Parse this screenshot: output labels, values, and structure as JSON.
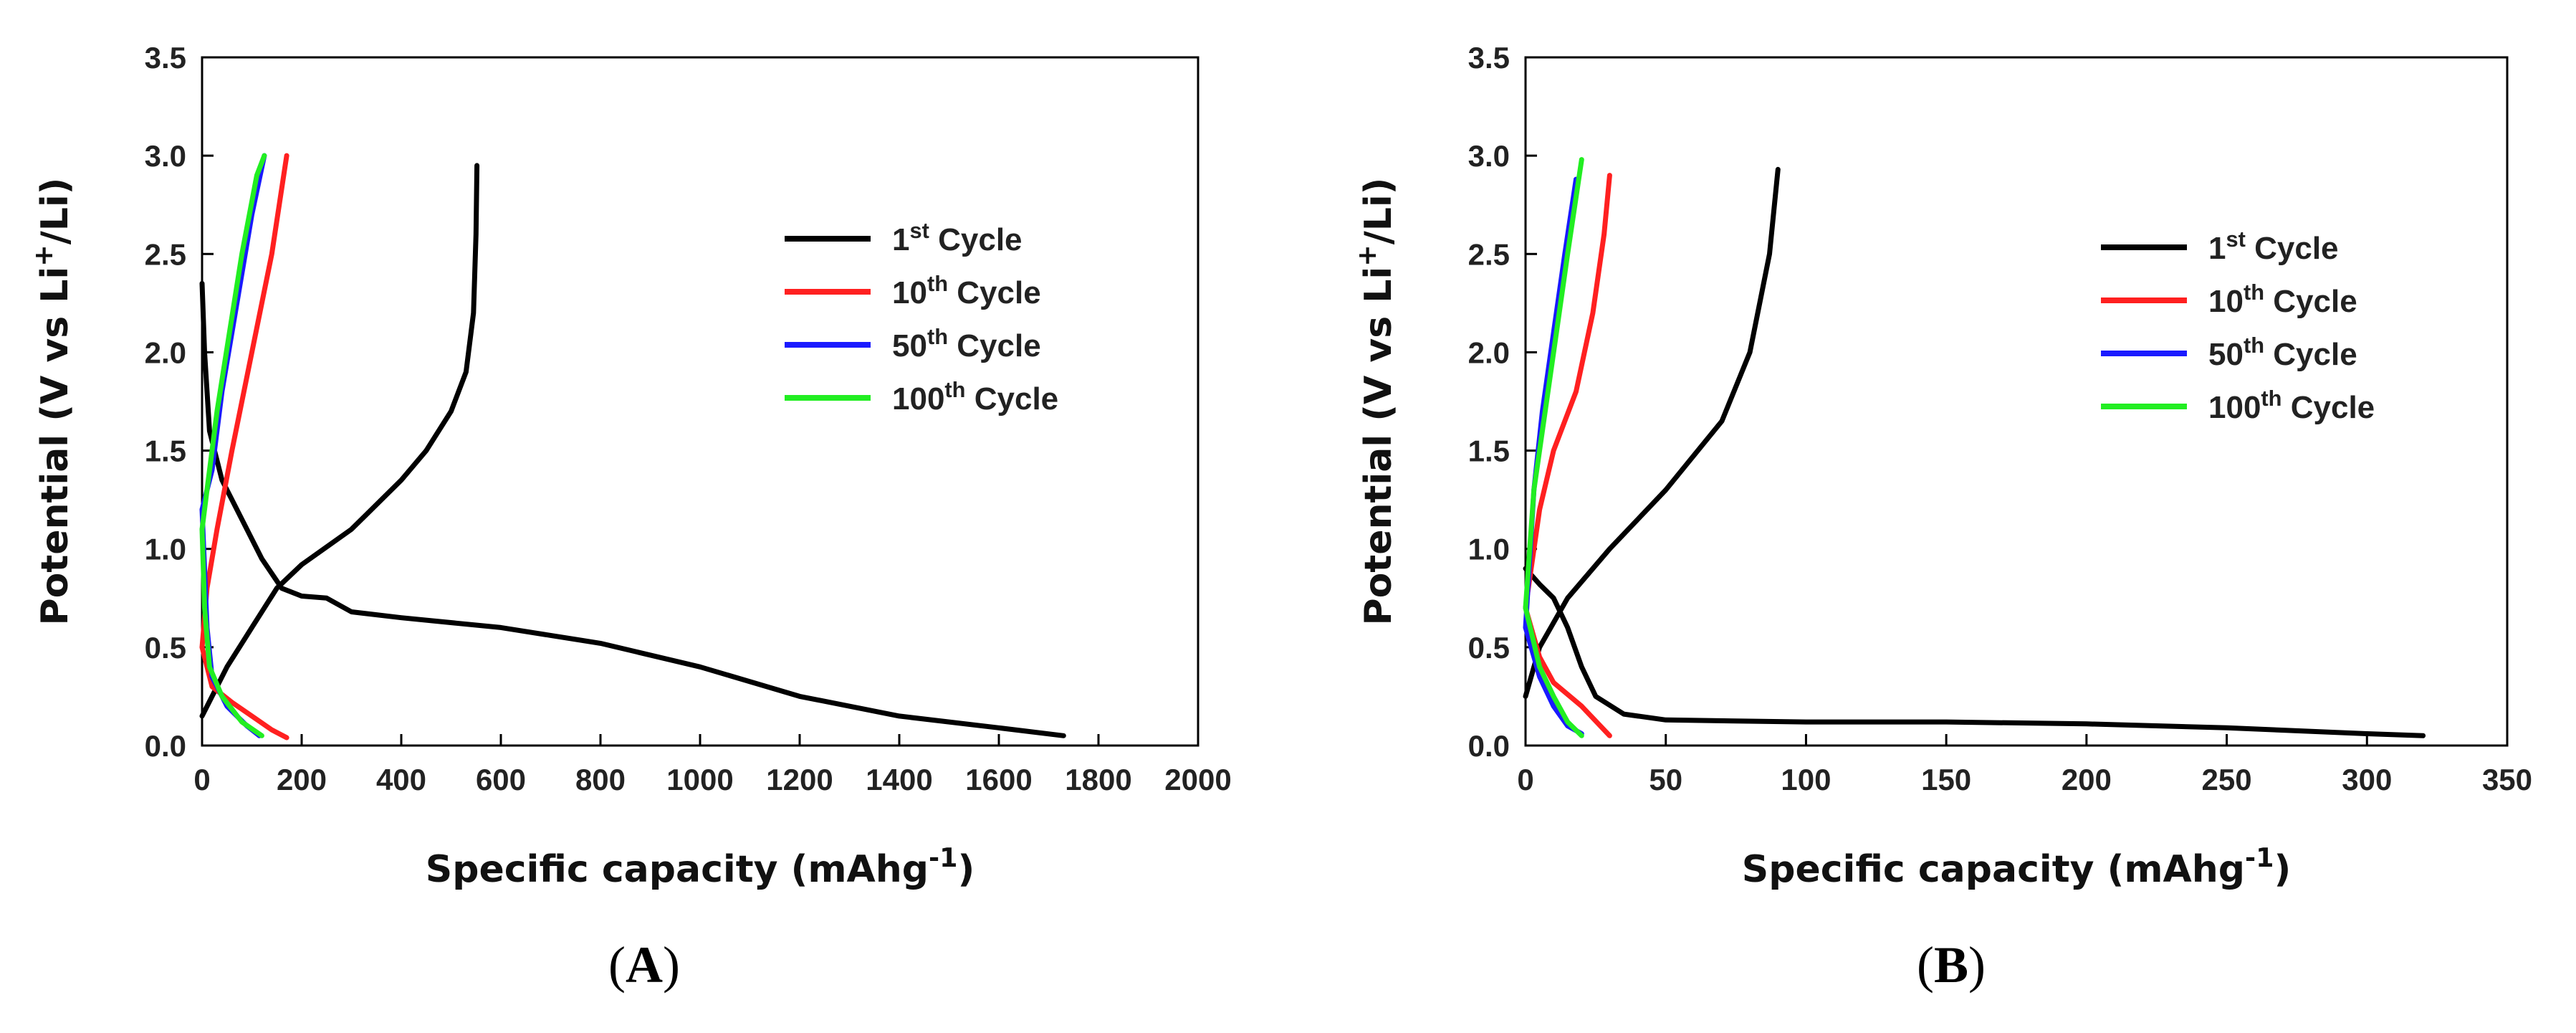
{
  "panels": [
    {
      "label_letter": "A"
    },
    {
      "label_letter": "B"
    }
  ],
  "chart_data": [
    {
      "type": "line",
      "panel": "A",
      "xlabel": {
        "main": "Specific capacity (mAhg",
        "sup": "-1",
        "tail": ")"
      },
      "ylabel": {
        "main": "Potential (V vs Li",
        "sup": "+",
        "tail": "/Li)"
      },
      "xlim": [
        0,
        2000
      ],
      "ylim": [
        0,
        3.5
      ],
      "xticks": [
        0,
        200,
        400,
        600,
        800,
        1000,
        1200,
        1400,
        1600,
        1800,
        2000
      ],
      "yticks": [
        "0.0",
        "0.5",
        "1.0",
        "1.5",
        "2.0",
        "2.5",
        "3.0",
        "3.5"
      ],
      "grid": false,
      "legend_position": "top-right",
      "series": [
        {
          "name": {
            "num": "1",
            "sup": "st",
            "text": " Cycle"
          },
          "color": "#000000",
          "curves": [
            [
              [
                0,
                2.35
              ],
              [
                5,
                2.0
              ],
              [
                15,
                1.6
              ],
              [
                40,
                1.35
              ],
              [
                80,
                1.15
              ],
              [
                120,
                0.95
              ],
              [
                160,
                0.8
              ],
              [
                200,
                0.76
              ],
              [
                250,
                0.75
              ],
              [
                300,
                0.68
              ],
              [
                400,
                0.65
              ],
              [
                600,
                0.6
              ],
              [
                800,
                0.52
              ],
              [
                1000,
                0.4
              ],
              [
                1200,
                0.25
              ],
              [
                1400,
                0.15
              ],
              [
                1600,
                0.09
              ],
              [
                1730,
                0.05
              ]
            ],
            [
              [
                0,
                0.15
              ],
              [
                50,
                0.4
              ],
              [
                100,
                0.6
              ],
              [
                150,
                0.8
              ],
              [
                200,
                0.92
              ],
              [
                300,
                1.1
              ],
              [
                400,
                1.35
              ],
              [
                450,
                1.5
              ],
              [
                500,
                1.7
              ],
              [
                530,
                1.9
              ],
              [
                545,
                2.2
              ],
              [
                550,
                2.6
              ],
              [
                552,
                2.95
              ]
            ]
          ]
        },
        {
          "name": {
            "num": "10",
            "sup": "th",
            "text": " Cycle"
          },
          "color": "#ff2020",
          "curves": [
            [
              [
                0,
                0.5
              ],
              [
                20,
                0.3
              ],
              [
                60,
                0.22
              ],
              [
                100,
                0.15
              ],
              [
                140,
                0.08
              ],
              [
                170,
                0.04
              ]
            ],
            [
              [
                0,
                0.5
              ],
              [
                10,
                0.8
              ],
              [
                30,
                1.1
              ],
              [
                60,
                1.5
              ],
              [
                100,
                2.0
              ],
              [
                140,
                2.5
              ],
              [
                170,
                3.0
              ]
            ]
          ]
        },
        {
          "name": {
            "num": "50",
            "sup": "th",
            "text": " Cycle"
          },
          "color": "#1a1aff",
          "curves": [
            [
              [
                0,
                1.2
              ],
              [
                10,
                0.6
              ],
              [
                20,
                0.35
              ],
              [
                50,
                0.2
              ],
              [
                90,
                0.1
              ],
              [
                115,
                0.05
              ]
            ],
            [
              [
                0,
                1.2
              ],
              [
                20,
                1.4
              ],
              [
                40,
                1.8
              ],
              [
                60,
                2.1
              ],
              [
                80,
                2.4
              ],
              [
                100,
                2.7
              ],
              [
                125,
                3.0
              ]
            ]
          ]
        },
        {
          "name": {
            "num": "100",
            "sup": "th",
            "text": " Cycle"
          },
          "color": "#22ee22",
          "curves": [
            [
              [
                0,
                1.1
              ],
              [
                5,
                0.7
              ],
              [
                15,
                0.4
              ],
              [
                40,
                0.25
              ],
              [
                80,
                0.12
              ],
              [
                120,
                0.05
              ]
            ],
            [
              [
                0,
                1.1
              ],
              [
                10,
                1.3
              ],
              [
                30,
                1.7
              ],
              [
                55,
                2.1
              ],
              [
                80,
                2.5
              ],
              [
                110,
                2.9
              ],
              [
                125,
                3.0
              ]
            ]
          ]
        }
      ]
    },
    {
      "type": "line",
      "panel": "B",
      "xlabel": {
        "main": "Specific capacity (mAhg",
        "sup": "-1",
        "tail": ")"
      },
      "ylabel": {
        "main": "Potential (V vs Li",
        "sup": "+",
        "tail": "/Li)"
      },
      "xlim": [
        0,
        350
      ],
      "ylim": [
        0,
        3.5
      ],
      "xticks": [
        0,
        50,
        100,
        150,
        200,
        250,
        300,
        350
      ],
      "yticks": [
        "0.0",
        "0.5",
        "1.0",
        "1.5",
        "2.0",
        "2.5",
        "3.0",
        "3.5"
      ],
      "grid": false,
      "legend_position": "top-right",
      "series": [
        {
          "name": {
            "num": "1",
            "sup": "st",
            "text": " Cycle"
          },
          "color": "#000000",
          "curves": [
            [
              [
                0,
                0.9
              ],
              [
                5,
                0.82
              ],
              [
                10,
                0.75
              ],
              [
                15,
                0.6
              ],
              [
                20,
                0.4
              ],
              [
                25,
                0.25
              ],
              [
                35,
                0.16
              ],
              [
                50,
                0.13
              ],
              [
                100,
                0.12
              ],
              [
                150,
                0.12
              ],
              [
                200,
                0.11
              ],
              [
                250,
                0.09
              ],
              [
                300,
                0.06
              ],
              [
                320,
                0.05
              ]
            ],
            [
              [
                0,
                0.25
              ],
              [
                5,
                0.5
              ],
              [
                15,
                0.75
              ],
              [
                30,
                1.0
              ],
              [
                50,
                1.3
              ],
              [
                70,
                1.65
              ],
              [
                80,
                2.0
              ],
              [
                87,
                2.5
              ],
              [
                90,
                2.93
              ]
            ]
          ]
        },
        {
          "name": {
            "num": "10",
            "sup": "th",
            "text": " Cycle"
          },
          "color": "#ff2020",
          "curves": [
            [
              [
                0,
                0.7
              ],
              [
                5,
                0.45
              ],
              [
                10,
                0.32
              ],
              [
                20,
                0.2
              ],
              [
                30,
                0.05
              ]
            ],
            [
              [
                0,
                0.7
              ],
              [
                5,
                1.2
              ],
              [
                10,
                1.5
              ],
              [
                18,
                1.8
              ],
              [
                24,
                2.2
              ],
              [
                28,
                2.6
              ],
              [
                30,
                2.9
              ]
            ]
          ]
        },
        {
          "name": {
            "num": "50",
            "sup": "th",
            "text": " Cycle"
          },
          "color": "#1a1aff",
          "curves": [
            [
              [
                0,
                0.6
              ],
              [
                5,
                0.35
              ],
              [
                10,
                0.2
              ],
              [
                15,
                0.1
              ],
              [
                20,
                0.06
              ]
            ],
            [
              [
                0,
                0.6
              ],
              [
                3,
                1.3
              ],
              [
                6,
                1.7
              ],
              [
                10,
                2.1
              ],
              [
                14,
                2.5
              ],
              [
                18,
                2.88
              ]
            ]
          ]
        },
        {
          "name": {
            "num": "100",
            "sup": "th",
            "text": " Cycle"
          },
          "color": "#22ee22",
          "curves": [
            [
              [
                0,
                0.7
              ],
              [
                5,
                0.4
              ],
              [
                10,
                0.25
              ],
              [
                15,
                0.12
              ],
              [
                20,
                0.05
              ]
            ],
            [
              [
                0,
                0.7
              ],
              [
                3,
                1.3
              ],
              [
                7,
                1.7
              ],
              [
                11,
                2.1
              ],
              [
                15,
                2.5
              ],
              [
                20,
                2.98
              ]
            ]
          ]
        }
      ]
    }
  ]
}
